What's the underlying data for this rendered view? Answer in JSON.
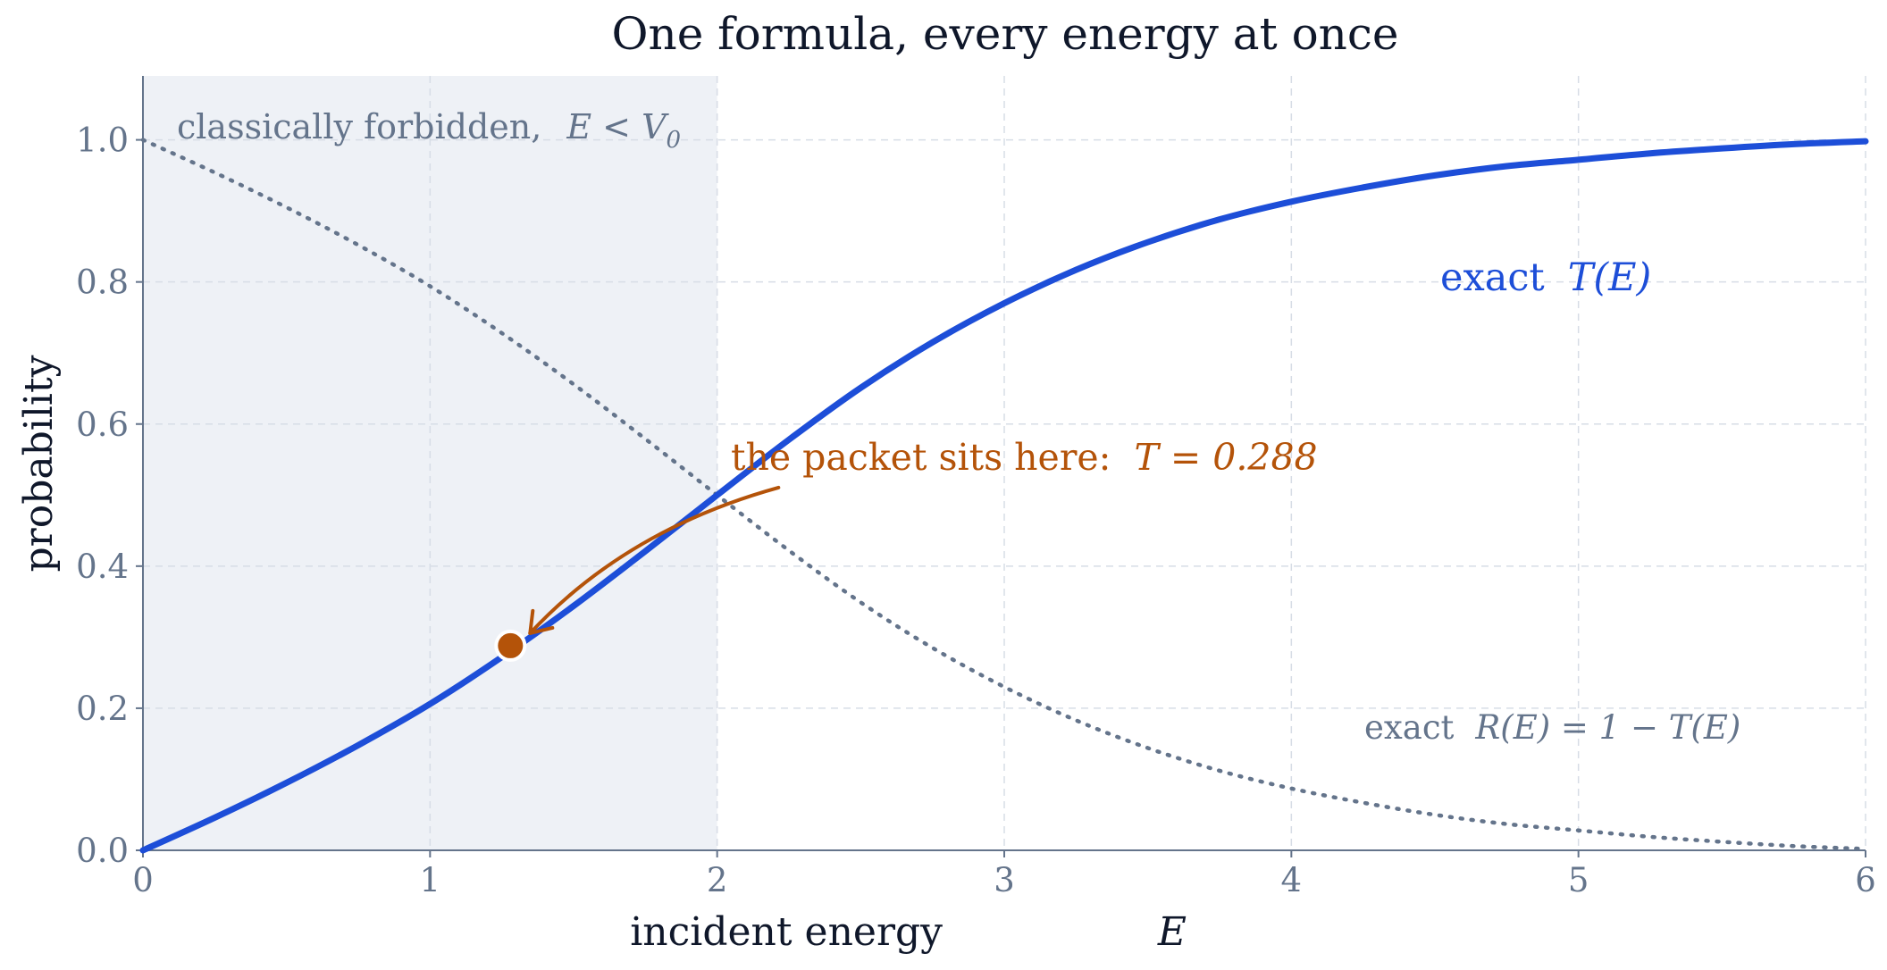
{
  "chart_data": {
    "type": "line",
    "title": "One formula, every energy at once",
    "xlabel": "incident energy",
    "xlabel_math": "E",
    "ylabel": "probability",
    "xlim": [
      0,
      6
    ],
    "ylim": [
      0,
      1.09
    ],
    "x_ticks": [
      "0",
      "1",
      "2",
      "3",
      "4",
      "5",
      "6"
    ],
    "y_ticks": [
      "0.0",
      "0.2",
      "0.4",
      "0.6",
      "0.8",
      "1.0"
    ],
    "grid": true,
    "shaded_region": {
      "x_range": [
        0,
        2
      ],
      "label": "classically forbidden,",
      "label_math": "E < V",
      "label_math_sub": "0"
    },
    "x": [
      0,
      0.25,
      0.5,
      0.75,
      1,
      1.25,
      1.5,
      1.75,
      2,
      2.25,
      2.5,
      2.75,
      3,
      3.25,
      3.5,
      3.75,
      4,
      4.25,
      4.5,
      4.75,
      5,
      5.25,
      5.5,
      5.75,
      6
    ],
    "series": [
      {
        "name": "exact",
        "name_math": "T(E)",
        "color": "#1d4ed8",
        "style": "solid",
        "values": [
          0,
          0.046,
          0.095,
          0.148,
          0.206,
          0.272,
          0.344,
          0.421,
          0.5,
          0.578,
          0.651,
          0.715,
          0.77,
          0.817,
          0.856,
          0.888,
          0.913,
          0.933,
          0.95,
          0.963,
          0.972,
          0.981,
          0.988,
          0.994,
          0.998
        ]
      },
      {
        "name": "exact",
        "name_math": "R(E) = 1 − T(E)",
        "color": "#64748b",
        "style": "dotted",
        "values": [
          1,
          0.954,
          0.905,
          0.852,
          0.794,
          0.728,
          0.656,
          0.579,
          0.5,
          0.422,
          0.349,
          0.285,
          0.23,
          0.183,
          0.144,
          0.112,
          0.087,
          0.067,
          0.05,
          0.037,
          0.028,
          0.019,
          0.012,
          0.006,
          0.002
        ]
      }
    ],
    "highlight_point": {
      "x": 1.28,
      "y": 0.288,
      "color": "#b45309",
      "label": "the packet sits here:",
      "label_math": "T = 0.288"
    }
  }
}
